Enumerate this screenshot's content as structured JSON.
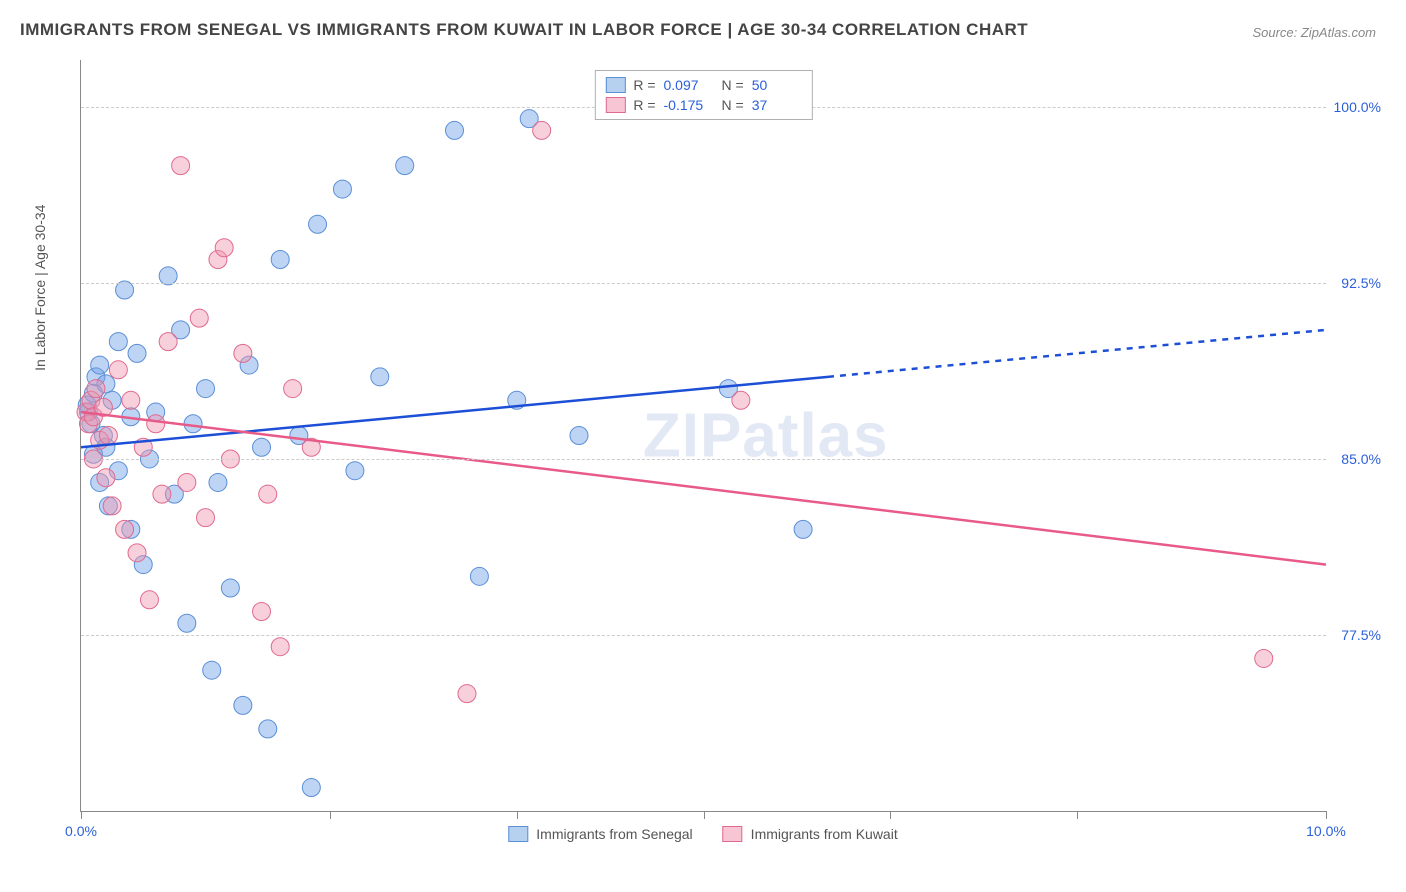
{
  "title": "IMMIGRANTS FROM SENEGAL VS IMMIGRANTS FROM KUWAIT IN LABOR FORCE | AGE 30-34 CORRELATION CHART",
  "source": "Source: ZipAtlas.com",
  "watermark": "ZIPatlas",
  "y_axis_label": "In Labor Force | Age 30-34",
  "chart": {
    "type": "scatter",
    "background_color": "#ffffff",
    "grid_color": "#cccccc",
    "axis_color": "#888888",
    "xlim": [
      0,
      10
    ],
    "ylim": [
      70,
      102
    ],
    "y_ticks": [
      77.5,
      85.0,
      92.5,
      100.0
    ],
    "y_tick_labels": [
      "77.5%",
      "85.0%",
      "92.5%",
      "100.0%"
    ],
    "x_ticks": [
      0,
      2,
      3.5,
      5,
      6.5,
      8,
      10
    ],
    "x_tick_labels_shown": {
      "0": "0.0%",
      "10": "10.0%"
    },
    "series": [
      {
        "name": "Immigrants from Senegal",
        "color_fill": "rgba(110,160,230,0.45)",
        "color_stroke": "#5b8fd6",
        "swatch_fill": "#b6d0f0",
        "swatch_border": "#5b8fd6",
        "r_value": "0.097",
        "n_value": "50",
        "trend": {
          "color": "#1c4fd6",
          "y_at_x0": 85.5,
          "y_at_x10": 90.5,
          "solid_until_x": 6.0
        },
        "points": [
          [
            0.05,
            87.3
          ],
          [
            0.06,
            87.0
          ],
          [
            0.08,
            86.5
          ],
          [
            0.1,
            87.8
          ],
          [
            0.1,
            85.2
          ],
          [
            0.12,
            88.5
          ],
          [
            0.15,
            84.0
          ],
          [
            0.15,
            89.0
          ],
          [
            0.18,
            86.0
          ],
          [
            0.2,
            85.5
          ],
          [
            0.2,
            88.2
          ],
          [
            0.22,
            83.0
          ],
          [
            0.25,
            87.5
          ],
          [
            0.3,
            90.0
          ],
          [
            0.3,
            84.5
          ],
          [
            0.35,
            92.2
          ],
          [
            0.4,
            86.8
          ],
          [
            0.4,
            82.0
          ],
          [
            0.45,
            89.5
          ],
          [
            0.5,
            80.5
          ],
          [
            0.55,
            85.0
          ],
          [
            0.6,
            87.0
          ],
          [
            0.7,
            92.8
          ],
          [
            0.75,
            83.5
          ],
          [
            0.8,
            90.5
          ],
          [
            0.85,
            78.0
          ],
          [
            0.9,
            86.5
          ],
          [
            1.0,
            88.0
          ],
          [
            1.05,
            76.0
          ],
          [
            1.1,
            84.0
          ],
          [
            1.2,
            79.5
          ],
          [
            1.3,
            74.5
          ],
          [
            1.35,
            89.0
          ],
          [
            1.45,
            85.5
          ],
          [
            1.5,
            73.5
          ],
          [
            1.6,
            93.5
          ],
          [
            1.75,
            86.0
          ],
          [
            1.85,
            71.0
          ],
          [
            1.9,
            95.0
          ],
          [
            2.1,
            96.5
          ],
          [
            2.2,
            84.5
          ],
          [
            2.4,
            88.5
          ],
          [
            2.6,
            97.5
          ],
          [
            3.0,
            99.0
          ],
          [
            3.2,
            80.0
          ],
          [
            3.6,
            99.5
          ],
          [
            3.5,
            87.5
          ],
          [
            5.2,
            88.0
          ],
          [
            5.8,
            82.0
          ],
          [
            4.0,
            86.0
          ]
        ]
      },
      {
        "name": "Immigrants from Kuwait",
        "color_fill": "rgba(240,150,175,0.45)",
        "color_stroke": "#e06a8f",
        "swatch_fill": "#f7c5d4",
        "swatch_border": "#e06a8f",
        "r_value": "-0.175",
        "n_value": "37",
        "trend": {
          "color": "#e85a88",
          "y_at_x0": 87.0,
          "y_at_x10": 80.5,
          "solid_until_x": 10.0
        },
        "points": [
          [
            0.04,
            87.0
          ],
          [
            0.06,
            86.5
          ],
          [
            0.08,
            87.5
          ],
          [
            0.1,
            85.0
          ],
          [
            0.1,
            86.8
          ],
          [
            0.12,
            88.0
          ],
          [
            0.15,
            85.8
          ],
          [
            0.18,
            87.2
          ],
          [
            0.2,
            84.2
          ],
          [
            0.22,
            86.0
          ],
          [
            0.25,
            83.0
          ],
          [
            0.3,
            88.8
          ],
          [
            0.35,
            82.0
          ],
          [
            0.4,
            87.5
          ],
          [
            0.45,
            81.0
          ],
          [
            0.5,
            85.5
          ],
          [
            0.55,
            79.0
          ],
          [
            0.6,
            86.5
          ],
          [
            0.65,
            83.5
          ],
          [
            0.7,
            90.0
          ],
          [
            0.8,
            97.5
          ],
          [
            0.85,
            84.0
          ],
          [
            0.95,
            91.0
          ],
          [
            1.0,
            82.5
          ],
          [
            1.1,
            93.5
          ],
          [
            1.15,
            94.0
          ],
          [
            1.2,
            85.0
          ],
          [
            1.3,
            89.5
          ],
          [
            1.45,
            78.5
          ],
          [
            1.5,
            83.5
          ],
          [
            1.6,
            77.0
          ],
          [
            1.7,
            88.0
          ],
          [
            1.85,
            85.5
          ],
          [
            3.1,
            75.0
          ],
          [
            3.7,
            99.0
          ],
          [
            5.3,
            87.5
          ],
          [
            9.5,
            76.5
          ]
        ]
      }
    ]
  },
  "legend_top_labels": {
    "R": "R =",
    "N": "N ="
  },
  "colors": {
    "stat_value": "#2b5fd9",
    "axis_label_text": "#555555"
  }
}
